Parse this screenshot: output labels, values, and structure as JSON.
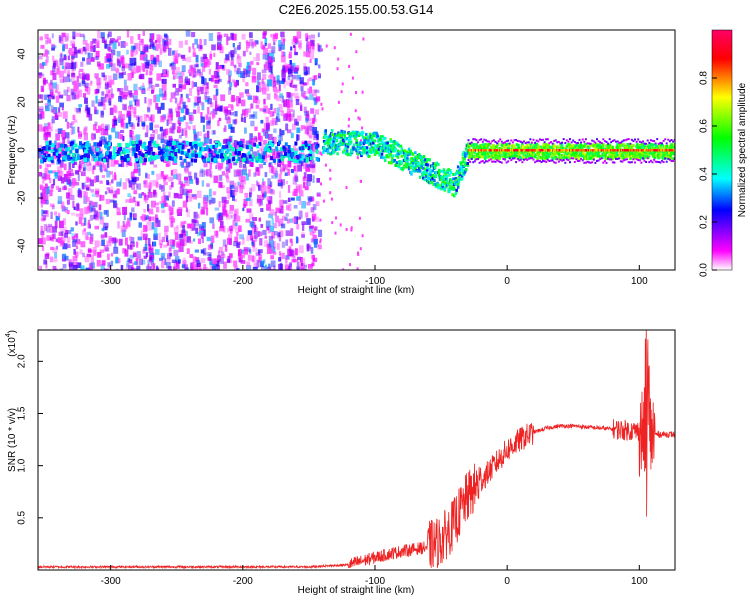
{
  "title": "C2E6.2025.155.00.53.G14",
  "chart_data": [
    {
      "type": "heatmap",
      "xlabel": "Height of straight line (km)",
      "ylabel": "Frequency (Hz)",
      "xlim": [
        -355,
        127
      ],
      "ylim": [
        -50,
        50
      ],
      "xticks": [
        -300,
        -200,
        -100,
        0,
        100
      ],
      "yticks": [
        -40,
        -20,
        0,
        20,
        40
      ],
      "grid": false,
      "colorbar": {
        "label": "Normalized spectral amplitude",
        "ticks": [
          "0.0",
          "0.2",
          "0.4",
          "0.6",
          "0.8"
        ],
        "range": [
          0,
          1
        ],
        "colors": [
          "#ffffff",
          "#ff00ff",
          "#0000ff",
          "#00ffff",
          "#00ff00",
          "#ffff00",
          "#ff0000"
        ]
      },
      "ridge": {
        "description_points_x": [
          -140,
          -100,
          -80,
          -60,
          -50,
          -40,
          -30,
          0,
          50,
          100,
          127
        ],
        "frequency": [
          5,
          3,
          0,
          -5,
          -10,
          -15,
          0,
          0,
          0,
          0,
          0
        ]
      }
    },
    {
      "type": "line",
      "xlabel": "Height of straight line (km)",
      "ylabel": "SNR (10 * v/v)",
      "multiplier_label": "(x10",
      "multiplier_exp": "4",
      "multiplier_close": ")",
      "xlim": [
        -355,
        127
      ],
      "ylim": [
        0,
        2.3
      ],
      "xticks": [
        -300,
        -200,
        -100,
        0,
        100
      ],
      "yticks": [
        0.5,
        1.0,
        1.5,
        2.0
      ],
      "ytick_labels": [
        "0.5",
        "1.0",
        "1.5",
        "2.0"
      ],
      "grid": false,
      "color": "#ee2222",
      "series": [
        {
          "x": [
            -355,
            -300,
            -250,
            -200,
            -150,
            -120,
            -100,
            -90,
            -80,
            -70,
            -60,
            -50,
            -40,
            -30,
            -20,
            -10,
            0,
            10,
            20,
            30,
            40,
            50,
            60,
            70,
            80,
            90,
            100,
            105,
            110,
            115,
            127
          ],
          "y": [
            0.03,
            0.03,
            0.03,
            0.03,
            0.03,
            0.05,
            0.12,
            0.15,
            0.18,
            0.2,
            0.22,
            0.28,
            0.45,
            0.7,
            0.85,
            1.0,
            1.15,
            1.25,
            1.32,
            1.36,
            1.38,
            1.38,
            1.37,
            1.36,
            1.35,
            1.34,
            1.33,
            1.3,
            1.3,
            1.3,
            1.3
          ]
        }
      ]
    }
  ]
}
